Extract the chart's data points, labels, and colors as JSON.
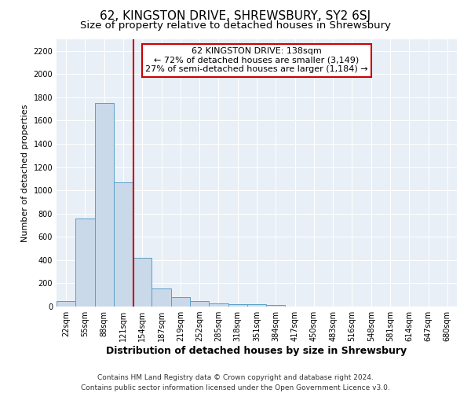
{
  "title": "62, KINGSTON DRIVE, SHREWSBURY, SY2 6SJ",
  "subtitle": "Size of property relative to detached houses in Shrewsbury",
  "xlabel": "Distribution of detached houses by size in Shrewsbury",
  "ylabel": "Number of detached properties",
  "bar_labels": [
    "22sqm",
    "55sqm",
    "88sqm",
    "121sqm",
    "154sqm",
    "187sqm",
    "219sqm",
    "252sqm",
    "285sqm",
    "318sqm",
    "351sqm",
    "384sqm",
    "417sqm",
    "450sqm",
    "483sqm",
    "516sqm",
    "548sqm",
    "581sqm",
    "614sqm",
    "647sqm",
    "680sqm"
  ],
  "bar_values": [
    50,
    760,
    1750,
    1070,
    420,
    155,
    80,
    45,
    30,
    20,
    20,
    15,
    0,
    0,
    0,
    0,
    0,
    0,
    0,
    0,
    0
  ],
  "bar_color": "#c9d9ea",
  "bar_edge_color": "#5a9ec8",
  "vline_color": "#cc0000",
  "annotation_title": "62 KINGSTON DRIVE: 138sqm",
  "annotation_line2": "← 72% of detached houses are smaller (3,149)",
  "annotation_line3": "27% of semi-detached houses are larger (1,184) →",
  "annotation_box_facecolor": "#ffffff",
  "annotation_box_edge": "#cc0000",
  "ylim": [
    0,
    2300
  ],
  "yticks": [
    0,
    200,
    400,
    600,
    800,
    1000,
    1200,
    1400,
    1600,
    1800,
    2000,
    2200
  ],
  "bg_color": "#e8eff6",
  "grid_color": "#ffffff",
  "footer1": "Contains HM Land Registry data © Crown copyright and database right 2024.",
  "footer2": "Contains public sector information licensed under the Open Government Licence v3.0.",
  "title_fontsize": 11,
  "subtitle_fontsize": 9.5,
  "xlabel_fontsize": 9,
  "ylabel_fontsize": 8,
  "tick_fontsize": 7,
  "annotation_fontsize": 8,
  "footer_fontsize": 6.5
}
